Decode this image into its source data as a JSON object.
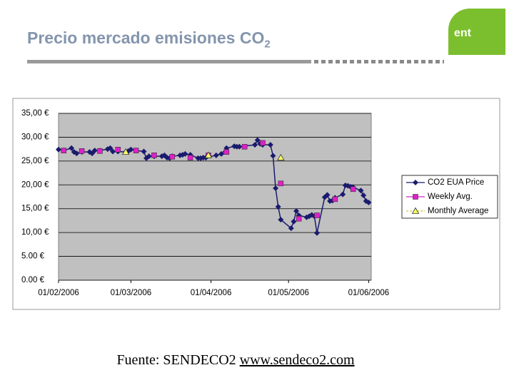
{
  "header": {
    "title": "Precio mercado emisiones CO",
    "title_subscript": "2",
    "logo": "ent"
  },
  "chart_data": {
    "type": "line",
    "ylim": [
      0,
      35
    ],
    "yticks": [
      {
        "value": 35,
        "label": "35,00 €"
      },
      {
        "value": 30,
        "label": "30,00 €"
      },
      {
        "value": 25,
        "label": "25,00 €"
      },
      {
        "value": 20,
        "label": "20,00 €"
      },
      {
        "value": 15,
        "label": "15,00 €"
      },
      {
        "value": 10,
        "label": "10,00 €"
      },
      {
        "value": 5,
        "label": "5.00 €"
      },
      {
        "value": 0,
        "label": "0.00 €"
      }
    ],
    "xlim": [
      "2006-02-01",
      "2006-06-02"
    ],
    "xticks": [
      {
        "value": "2006-02-01",
        "label": "01/02/2006"
      },
      {
        "value": "2006-03-01",
        "label": "01/03/2006"
      },
      {
        "value": "2006-04-01",
        "label": "01/04/2006"
      },
      {
        "value": "2006-05-01",
        "label": "01/05/2006"
      },
      {
        "value": "2006-06-01",
        "label": "01/06/2006"
      }
    ],
    "grid": true,
    "legend": "right",
    "series": [
      {
        "name": "CO2 EUA Price",
        "color": "#1a1a6e",
        "marker": "diamond",
        "x": [
          "2006-02-01",
          "2006-02-03",
          "2006-02-06",
          "2006-02-07",
          "2006-02-08",
          "2006-02-10",
          "2006-02-13",
          "2006-02-14",
          "2006-02-15",
          "2006-02-17",
          "2006-02-20",
          "2006-02-21",
          "2006-02-22",
          "2006-02-24",
          "2006-02-27",
          "2006-02-28",
          "2006-03-01",
          "2006-03-03",
          "2006-03-06",
          "2006-03-07",
          "2006-03-08",
          "2006-03-10",
          "2006-03-13",
          "2006-03-14",
          "2006-03-15",
          "2006-03-16",
          "2006-03-17",
          "2006-03-20",
          "2006-03-21",
          "2006-03-22",
          "2006-03-24",
          "2006-03-27",
          "2006-03-28",
          "2006-03-29",
          "2006-03-30",
          "2006-04-03",
          "2006-04-05",
          "2006-04-07",
          "2006-04-10",
          "2006-04-11",
          "2006-04-12",
          "2006-04-18",
          "2006-04-19",
          "2006-04-20",
          "2006-04-21",
          "2006-04-24",
          "2006-04-25",
          "2006-04-26",
          "2006-04-27",
          "2006-04-28",
          "2006-05-02",
          "2006-05-03",
          "2006-05-04",
          "2006-05-05",
          "2006-05-08",
          "2006-05-09",
          "2006-05-10",
          "2006-05-11",
          "2006-05-12",
          "2006-05-15",
          "2006-05-16",
          "2006-05-17",
          "2006-05-18",
          "2006-05-19",
          "2006-05-22",
          "2006-05-23",
          "2006-05-24",
          "2006-05-25",
          "2006-05-26",
          "2006-05-29",
          "2006-05-30",
          "2006-05-31",
          "2006-06-01"
        ],
        "values": [
          27.4,
          27.2,
          27.7,
          26.9,
          26.6,
          26.9,
          26.9,
          26.6,
          27.2,
          27.2,
          27.5,
          27.7,
          27.0,
          27.0,
          26.9,
          27.1,
          27.4,
          27.2,
          27.0,
          25.6,
          26.0,
          26.0,
          26.0,
          26.2,
          25.7,
          25.6,
          26.0,
          26.2,
          26.3,
          26.5,
          26.3,
          25.6,
          25.6,
          25.7,
          25.7,
          26.2,
          26.5,
          27.7,
          28.1,
          28.0,
          28.0,
          28.4,
          29.4,
          28.6,
          28.4,
          28.4,
          26.1,
          19.3,
          15.4,
          12.7,
          10.9,
          12.3,
          14.5,
          13.6,
          13.2,
          13.4,
          13.7,
          13.4,
          9.9,
          17.4,
          17.9,
          16.6,
          16.7,
          17.3,
          18.0,
          19.9,
          19.8,
          19.6,
          19.5,
          18.8,
          17.8,
          16.6,
          16.3
        ]
      },
      {
        "name": "Weekly Avg.",
        "color": "#e020c8",
        "marker": "square",
        "x": [
          "2006-02-03",
          "2006-02-10",
          "2006-02-17",
          "2006-02-24",
          "2006-03-03",
          "2006-03-10",
          "2006-03-17",
          "2006-03-24",
          "2006-03-31",
          "2006-04-07",
          "2006-04-14",
          "2006-04-21",
          "2006-04-28",
          "2006-05-05",
          "2006-05-12",
          "2006-05-19",
          "2006-05-26"
        ],
        "values": [
          27.2,
          27.1,
          27.1,
          27.4,
          27.2,
          26.2,
          25.9,
          25.7,
          26.2,
          26.9,
          28.0,
          28.8,
          20.3,
          12.9,
          13.6,
          17.0,
          19.1
        ]
      },
      {
        "name": "Monthly Average",
        "color": "#ffff66",
        "marker": "triangle",
        "x": [
          "2006-02-27",
          "2006-03-31",
          "2006-04-28"
        ],
        "values": [
          26.9,
          26.2,
          25.7
        ]
      }
    ]
  },
  "source": {
    "label": "Fuente: SENDECO2",
    "link": "www.sendeco2.com"
  }
}
